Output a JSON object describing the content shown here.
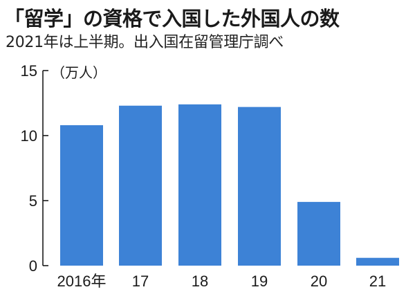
{
  "title": "「留学」の資格で入国した外国人の数",
  "subtitle": "2021年は上半期。出入国在留管理庁調べ",
  "chart_data": {
    "type": "bar",
    "title": "「留学」の資格で入国した外国人の数",
    "subtitle": "2021年は上半期。出入国在留管理庁調べ",
    "unit_label": "（万人）",
    "categories": [
      "2016年",
      "17",
      "18",
      "19",
      "20",
      "21"
    ],
    "values": [
      10.8,
      12.3,
      12.4,
      12.2,
      4.9,
      0.6
    ],
    "ylim": [
      0,
      15
    ],
    "yticks": [
      0,
      5,
      10,
      15
    ],
    "bar_color": "#3d82d6",
    "axis_color": "#1a1a1a",
    "grid": false
  }
}
